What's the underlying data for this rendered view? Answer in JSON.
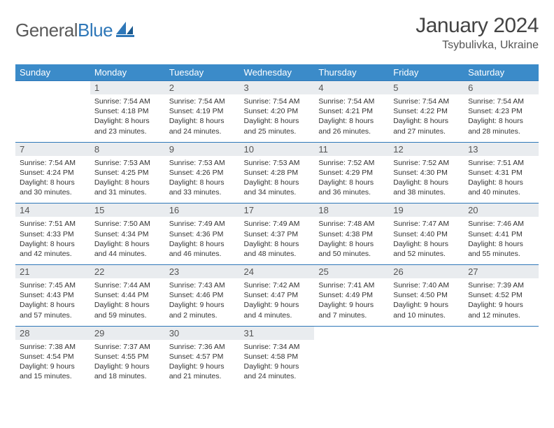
{
  "logo": {
    "text1": "General",
    "text2": "Blue"
  },
  "title": "January 2024",
  "location": "Tsybulivka, Ukraine",
  "colors": {
    "header_bg": "#3b8bc9",
    "header_text": "#ffffff",
    "daynum_bg": "#e9ecef",
    "row_border": "#2e77b8",
    "logo_gray": "#5a5a5a",
    "logo_blue": "#2e77b8"
  },
  "weekdays": [
    "Sunday",
    "Monday",
    "Tuesday",
    "Wednesday",
    "Thursday",
    "Friday",
    "Saturday"
  ],
  "weeks": [
    [
      {
        "n": "",
        "sr": "",
        "ss": "",
        "dl": ""
      },
      {
        "n": "1",
        "sr": "7:54 AM",
        "ss": "4:18 PM",
        "dl": "8 hours and 23 minutes."
      },
      {
        "n": "2",
        "sr": "7:54 AM",
        "ss": "4:19 PM",
        "dl": "8 hours and 24 minutes."
      },
      {
        "n": "3",
        "sr": "7:54 AM",
        "ss": "4:20 PM",
        "dl": "8 hours and 25 minutes."
      },
      {
        "n": "4",
        "sr": "7:54 AM",
        "ss": "4:21 PM",
        "dl": "8 hours and 26 minutes."
      },
      {
        "n": "5",
        "sr": "7:54 AM",
        "ss": "4:22 PM",
        "dl": "8 hours and 27 minutes."
      },
      {
        "n": "6",
        "sr": "7:54 AM",
        "ss": "4:23 PM",
        "dl": "8 hours and 28 minutes."
      }
    ],
    [
      {
        "n": "7",
        "sr": "7:54 AM",
        "ss": "4:24 PM",
        "dl": "8 hours and 30 minutes."
      },
      {
        "n": "8",
        "sr": "7:53 AM",
        "ss": "4:25 PM",
        "dl": "8 hours and 31 minutes."
      },
      {
        "n": "9",
        "sr": "7:53 AM",
        "ss": "4:26 PM",
        "dl": "8 hours and 33 minutes."
      },
      {
        "n": "10",
        "sr": "7:53 AM",
        "ss": "4:28 PM",
        "dl": "8 hours and 34 minutes."
      },
      {
        "n": "11",
        "sr": "7:52 AM",
        "ss": "4:29 PM",
        "dl": "8 hours and 36 minutes."
      },
      {
        "n": "12",
        "sr": "7:52 AM",
        "ss": "4:30 PM",
        "dl": "8 hours and 38 minutes."
      },
      {
        "n": "13",
        "sr": "7:51 AM",
        "ss": "4:31 PM",
        "dl": "8 hours and 40 minutes."
      }
    ],
    [
      {
        "n": "14",
        "sr": "7:51 AM",
        "ss": "4:33 PM",
        "dl": "8 hours and 42 minutes."
      },
      {
        "n": "15",
        "sr": "7:50 AM",
        "ss": "4:34 PM",
        "dl": "8 hours and 44 minutes."
      },
      {
        "n": "16",
        "sr": "7:49 AM",
        "ss": "4:36 PM",
        "dl": "8 hours and 46 minutes."
      },
      {
        "n": "17",
        "sr": "7:49 AM",
        "ss": "4:37 PM",
        "dl": "8 hours and 48 minutes."
      },
      {
        "n": "18",
        "sr": "7:48 AM",
        "ss": "4:38 PM",
        "dl": "8 hours and 50 minutes."
      },
      {
        "n": "19",
        "sr": "7:47 AM",
        "ss": "4:40 PM",
        "dl": "8 hours and 52 minutes."
      },
      {
        "n": "20",
        "sr": "7:46 AM",
        "ss": "4:41 PM",
        "dl": "8 hours and 55 minutes."
      }
    ],
    [
      {
        "n": "21",
        "sr": "7:45 AM",
        "ss": "4:43 PM",
        "dl": "8 hours and 57 minutes."
      },
      {
        "n": "22",
        "sr": "7:44 AM",
        "ss": "4:44 PM",
        "dl": "8 hours and 59 minutes."
      },
      {
        "n": "23",
        "sr": "7:43 AM",
        "ss": "4:46 PM",
        "dl": "9 hours and 2 minutes."
      },
      {
        "n": "24",
        "sr": "7:42 AM",
        "ss": "4:47 PM",
        "dl": "9 hours and 4 minutes."
      },
      {
        "n": "25",
        "sr": "7:41 AM",
        "ss": "4:49 PM",
        "dl": "9 hours and 7 minutes."
      },
      {
        "n": "26",
        "sr": "7:40 AM",
        "ss": "4:50 PM",
        "dl": "9 hours and 10 minutes."
      },
      {
        "n": "27",
        "sr": "7:39 AM",
        "ss": "4:52 PM",
        "dl": "9 hours and 12 minutes."
      }
    ],
    [
      {
        "n": "28",
        "sr": "7:38 AM",
        "ss": "4:54 PM",
        "dl": "9 hours and 15 minutes."
      },
      {
        "n": "29",
        "sr": "7:37 AM",
        "ss": "4:55 PM",
        "dl": "9 hours and 18 minutes."
      },
      {
        "n": "30",
        "sr": "7:36 AM",
        "ss": "4:57 PM",
        "dl": "9 hours and 21 minutes."
      },
      {
        "n": "31",
        "sr": "7:34 AM",
        "ss": "4:58 PM",
        "dl": "9 hours and 24 minutes."
      },
      {
        "n": "",
        "sr": "",
        "ss": "",
        "dl": ""
      },
      {
        "n": "",
        "sr": "",
        "ss": "",
        "dl": ""
      },
      {
        "n": "",
        "sr": "",
        "ss": "",
        "dl": ""
      }
    ]
  ]
}
